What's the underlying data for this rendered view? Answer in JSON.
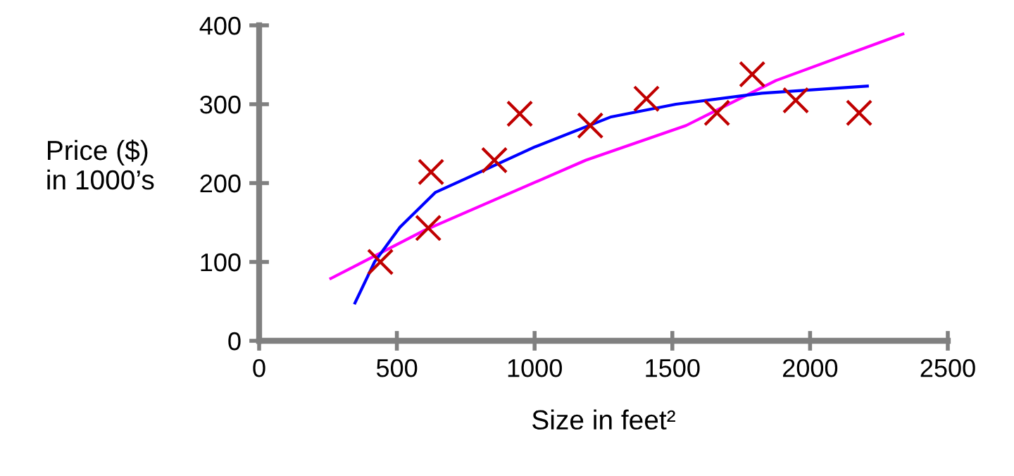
{
  "chart_data": {
    "type": "scatter",
    "xlabel": "Size in feet²",
    "ylabel": "Price ($)\nin 1000’s",
    "xlim": [
      0,
      2500
    ],
    "ylim": [
      0,
      400
    ],
    "xticks": [
      0,
      500,
      1000,
      1500,
      2000,
      2500
    ],
    "yticks": [
      0,
      100,
      200,
      300,
      400
    ],
    "grid": false,
    "legend": false,
    "series": [
      {
        "color": "#c00000",
        "marker": "cross",
        "x": [
          440,
          614,
          624,
          854,
          946,
          1202,
          1406,
          1662,
          1790,
          1948,
          2178
        ],
        "values": [
          100,
          143,
          214,
          229,
          288,
          273,
          307,
          289,
          338,
          305,
          289
        ]
      },
      {
        "type": "line",
        "color": "#ff00ff",
        "marker": "none",
        "x": [
          260,
          600,
          1186,
          1550,
          1876,
          2337
        ],
        "values": [
          79,
          140,
          229,
          273,
          330,
          389
        ]
      },
      {
        "type": "line",
        "color": "#0000ff",
        "marker": "none",
        "x": [
          348,
          419,
          511,
          639,
          746,
          1002,
          1278,
          1513,
          1825,
          2208
        ],
        "values": [
          48,
          100,
          144,
          188,
          205,
          246,
          284,
          300,
          314,
          323
        ]
      }
    ]
  }
}
